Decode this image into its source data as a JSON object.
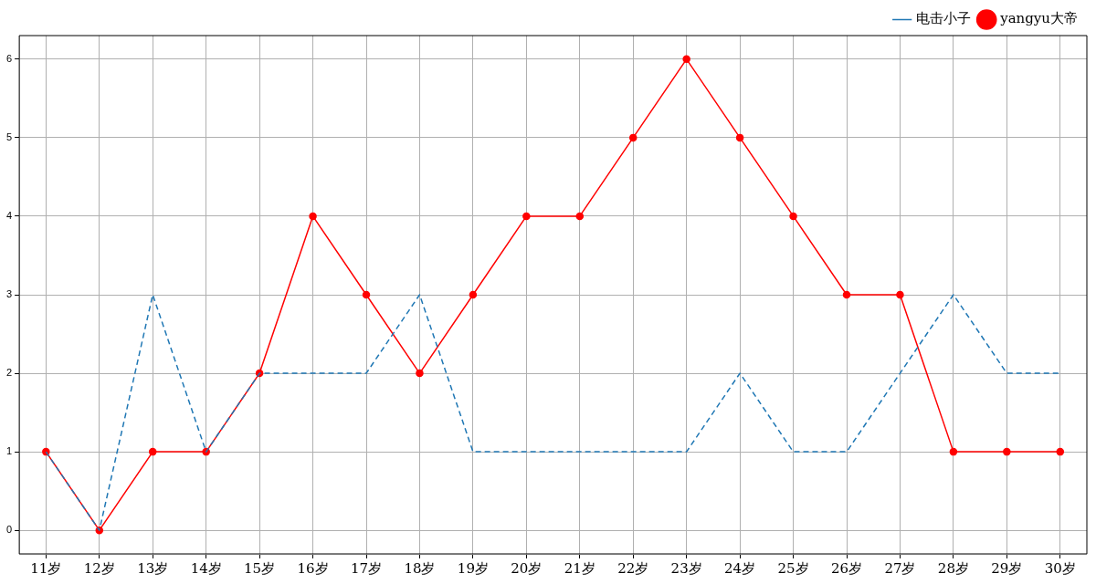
{
  "chart_data": {
    "type": "line",
    "categories": [
      "11岁",
      "12岁",
      "13岁",
      "14岁",
      "15岁",
      "16岁",
      "17岁",
      "18岁",
      "19岁",
      "20岁",
      "21岁",
      "22岁",
      "23岁",
      "24岁",
      "25岁",
      "26岁",
      "27岁",
      "28岁",
      "29岁",
      "30岁"
    ],
    "series": [
      {
        "name": "yangyu大帝",
        "color": "#ff0000",
        "marker": "circle",
        "line_style": "solid",
        "values": [
          1,
          0,
          1,
          1,
          2,
          4,
          3,
          2,
          3,
          4,
          4,
          5,
          6,
          5,
          4,
          3,
          3,
          1,
          1,
          1
        ]
      },
      {
        "name": "电击小子",
        "color": "#1f77b4",
        "marker": "none",
        "line_style": "dashed",
        "values": [
          1,
          0,
          3,
          1,
          2,
          2,
          2,
          3,
          1,
          1,
          1,
          1,
          1,
          2,
          1,
          1,
          2,
          3,
          2,
          2
        ]
      }
    ],
    "ylim": [
      -0.3,
      6.3
    ],
    "yticks": [
      0,
      1,
      2,
      3,
      4,
      5,
      6
    ],
    "grid": true,
    "legend": "top right"
  }
}
